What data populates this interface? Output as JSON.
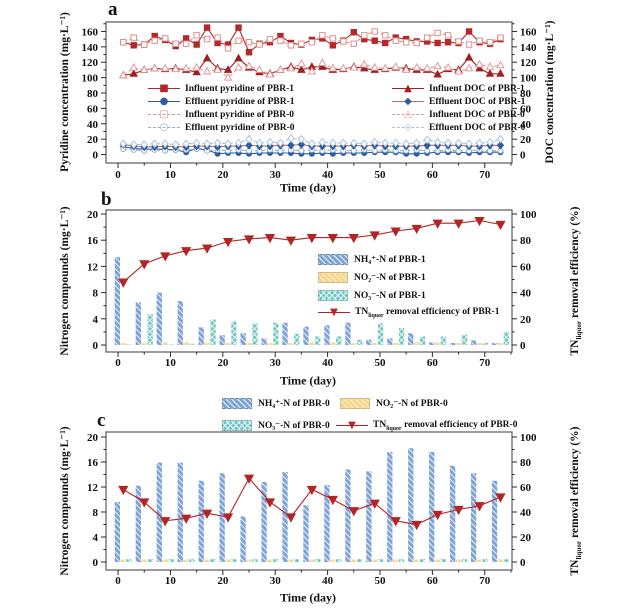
{
  "chart_data": [
    {
      "panel_label": "a",
      "type": "line",
      "xlabel": "Time (day)",
      "ylabel_left": "Pyridine concentration (mg·L⁻¹)",
      "ylabel_right": "DOC concentration (mg·L⁻¹)",
      "x_ticks": [
        0,
        10,
        20,
        30,
        40,
        50,
        60,
        70
      ],
      "y_ticks_left": [
        0,
        20,
        40,
        60,
        80,
        100,
        120,
        140,
        160
      ],
      "y_ticks_right": [
        0,
        20,
        40,
        60,
        80,
        100,
        120,
        140,
        160
      ],
      "xlim": [
        0,
        75
      ],
      "ylim_left": [
        0,
        170
      ],
      "ylim_right": [
        0,
        170
      ],
      "x": [
        1,
        3,
        5,
        7,
        9,
        11,
        13,
        15,
        17,
        19,
        21,
        23,
        25,
        27,
        29,
        31,
        33,
        35,
        37,
        39,
        41,
        43,
        45,
        47,
        49,
        51,
        53,
        55,
        57,
        59,
        61,
        63,
        65,
        67,
        69,
        71,
        73
      ],
      "series": [
        {
          "name": "Influent pyridine of PBR-1",
          "axis": "left",
          "marker": "square",
          "filled": true,
          "dashed": false,
          "color": "#b42828",
          "values": [
            146,
            142,
            143,
            154,
            149,
            141,
            151,
            143,
            165,
            145,
            143,
            165,
            133,
            144,
            146,
            154,
            145,
            143,
            149,
            151,
            142,
            148,
            159,
            150,
            148,
            145,
            152,
            150,
            147,
            147,
            145,
            146,
            145,
            160,
            146,
            144,
            150
          ]
        },
        {
          "name": "Effluent pyridine of PBR-1",
          "axis": "left",
          "marker": "circle",
          "filled": true,
          "dashed": false,
          "color": "#2f5e9e",
          "values": [
            10,
            8,
            7,
            7,
            7,
            6,
            3,
            8,
            6,
            1,
            2,
            2,
            1,
            2,
            2,
            2,
            2,
            1,
            1,
            2,
            1,
            2,
            2,
            2,
            3,
            3,
            3,
            1,
            1,
            2,
            3,
            3,
            3,
            2,
            3,
            3,
            3
          ]
        },
        {
          "name": "Influent pyridine of PBR-0",
          "axis": "left",
          "marker": "square",
          "filled": false,
          "dashed": true,
          "color": "#e09090",
          "values": [
            146,
            152,
            143,
            148,
            151,
            144,
            144,
            155,
            150,
            152,
            138,
            148,
            146,
            143,
            150,
            148,
            142,
            144,
            146,
            155,
            151,
            147,
            144,
            155,
            160,
            155,
            148,
            146,
            145,
            152,
            158,
            155,
            147,
            143,
            148,
            146,
            152
          ]
        },
        {
          "name": "Effluent pyridine of PBR-0",
          "axis": "left",
          "marker": "circle",
          "filled": false,
          "dashed": true,
          "color": "#93aecb",
          "values": [
            7,
            6,
            5,
            6,
            5,
            6,
            6,
            7,
            5,
            6,
            5,
            6,
            5,
            5,
            6,
            5,
            6,
            5,
            6,
            5,
            6,
            5,
            5,
            6,
            5,
            6,
            5,
            5,
            6,
            5,
            5,
            6,
            5,
            5,
            6,
            5,
            5
          ]
        },
        {
          "name": "Influent DOC of PBR-1",
          "axis": "right",
          "marker": "triangle-up",
          "filled": true,
          "dashed": false,
          "color": "#a02020",
          "values": [
            103,
            105,
            110,
            112,
            111,
            112,
            110,
            107,
            125,
            112,
            110,
            125,
            113,
            107,
            105,
            110,
            114,
            110,
            114,
            114,
            110,
            111,
            114,
            112,
            110,
            111,
            113,
            112,
            110,
            110,
            104,
            111,
            110,
            126,
            112,
            105,
            105
          ]
        },
        {
          "name": "Effluent DOC of PBR-1",
          "axis": "right",
          "marker": "diamond",
          "filled": true,
          "dashed": false,
          "color": "#2f5e9e",
          "line_color": "#c46a6a",
          "values": [
            13,
            11,
            10,
            10,
            11,
            10,
            10,
            11,
            11,
            10,
            11,
            11,
            12,
            11,
            11,
            12,
            12,
            13,
            11,
            11,
            11,
            11,
            12,
            11,
            12,
            11,
            11,
            11,
            11,
            12,
            12,
            12,
            12,
            11,
            11,
            12,
            12
          ]
        },
        {
          "name": "Influent DOC of PBR-0",
          "axis": "right",
          "marker": "triangle-up",
          "filled": false,
          "dashed": true,
          "color": "#e59a9a",
          "values": [
            103,
            113,
            110,
            112,
            112,
            111,
            112,
            113,
            108,
            110,
            100,
            113,
            115,
            110,
            104,
            110,
            112,
            118,
            108,
            119,
            112,
            112,
            113,
            117,
            113,
            112,
            114,
            110,
            113,
            112,
            115,
            113,
            108,
            112,
            117,
            114,
            116
          ]
        },
        {
          "name": "Effluent DOC of PBR-0",
          "axis": "right",
          "marker": "diamond",
          "filled": false,
          "dashed": true,
          "color": "#a9c6dc",
          "values": [
            14,
            13,
            13,
            14,
            14,
            13,
            14,
            15,
            14,
            15,
            14,
            15,
            20,
            15,
            16,
            15,
            21,
            20,
            14,
            16,
            15,
            15,
            15,
            14,
            16,
            15,
            15,
            14,
            15,
            19,
            16,
            15,
            15,
            14,
            15,
            16,
            20
          ]
        }
      ]
    },
    {
      "panel_label": "b",
      "type": "bar+line",
      "xlabel": "Time (day)",
      "ylabel_left": "Nitrogen compounds (mg·L⁻¹)",
      "ylabel_right_pre": "TN",
      "ylabel_right_sub": "liquor",
      "ylabel_right_post": " removal efficiency (%)",
      "x_ticks": [
        0,
        10,
        20,
        30,
        40,
        50,
        60,
        70
      ],
      "y_ticks_left": [
        0,
        4,
        8,
        12,
        16,
        20
      ],
      "y_ticks_right": [
        0,
        20,
        40,
        60,
        80,
        100
      ],
      "xlim": [
        0,
        75
      ],
      "ylim_left": [
        0,
        20
      ],
      "ylim_right": [
        0,
        100
      ],
      "days": [
        1,
        5,
        9,
        13,
        17,
        21,
        25,
        29,
        33,
        37,
        41,
        45,
        49,
        53,
        57,
        61,
        65,
        69,
        73
      ],
      "bars": [
        {
          "name": "NH₄⁺-N of PBR-1",
          "color": "#7ea3d7",
          "hatch": "diag",
          "values": [
            13.4,
            6.5,
            8.0,
            6.7,
            2.7,
            1.5,
            1.8,
            1.0,
            3.4,
            2.8,
            3.0,
            3.4,
            0.8,
            1.0,
            1.8,
            0.4,
            0.3,
            0.7,
            0.3
          ]
        },
        {
          "name": "NO₂⁻-N of PBR-1",
          "color": "#f5d78e",
          "hatch": "diag-light",
          "values": [
            0.3,
            0.3,
            0.4,
            0.4,
            0.3,
            0.3,
            0.3,
            0.3,
            0.3,
            0.4,
            0.4,
            0.3,
            0.3,
            0.3,
            0.4,
            0.4,
            0.3,
            0.3,
            0.3
          ]
        },
        {
          "name": "NO₃⁻-N of PBR-1",
          "color": "#6fc6c2",
          "hatch": "cross",
          "values": [
            0.1,
            4.7,
            0.1,
            0.2,
            3.9,
            3.6,
            3.3,
            3.4,
            1.7,
            1.3,
            1.3,
            0.8,
            3.3,
            2.6,
            1.3,
            1.3,
            1.6,
            0.3,
            2.0
          ]
        }
      ],
      "line": {
        "name_pre": "TN",
        "name_sub": "liquor",
        "name_post": " removal efficiency of PBR-1",
        "color": "#b32424",
        "marker": "triangle-down",
        "values": [
          48,
          62,
          68,
          72,
          74,
          79,
          81,
          82,
          80,
          82,
          82,
          82,
          84,
          87,
          89,
          93,
          93,
          95,
          92
        ]
      }
    },
    {
      "panel_label": "c",
      "type": "bar+line",
      "xlabel": "Time (day)",
      "ylabel_left": "Nitrogen compounds (mg·L⁻¹)",
      "ylabel_right_pre": "TN",
      "ylabel_right_sub": "liquor",
      "ylabel_right_post": " removal efficiency (%)",
      "x_ticks": [
        0,
        10,
        20,
        30,
        40,
        50,
        60,
        70
      ],
      "y_ticks_left": [
        0,
        4,
        8,
        12,
        16,
        20
      ],
      "y_ticks_right": [
        0,
        20,
        40,
        60,
        80,
        100
      ],
      "xlim": [
        0,
        75
      ],
      "ylim_left": [
        0,
        20
      ],
      "ylim_right": [
        0,
        100
      ],
      "days": [
        1,
        5,
        9,
        13,
        17,
        21,
        25,
        29,
        33,
        37,
        41,
        45,
        49,
        53,
        57,
        61,
        65,
        69,
        73
      ],
      "bars": [
        {
          "name": "NH₄⁺-N of PBR-0",
          "color": "#7ea3d7",
          "hatch": "diag",
          "values": [
            9.6,
            12.2,
            15.9,
            15.9,
            13.0,
            14.2,
            7.3,
            12.8,
            14.4,
            9.1,
            12.3,
            14.8,
            14.5,
            17.6,
            18.2,
            17.6,
            15.4,
            14.2,
            13.0
          ]
        },
        {
          "name": "NO₂⁻-N of PBR-0",
          "color": "#f5d78e",
          "hatch": "diag-light",
          "values": [
            0.4,
            0.4,
            0.4,
            0.4,
            0.4,
            0.4,
            0.4,
            0.4,
            0.4,
            0.4,
            0.4,
            0.4,
            0.4,
            0.4,
            0.4,
            0.4,
            0.4,
            0.4,
            0.4
          ]
        },
        {
          "name": "NO₃⁻-N of PBR-0",
          "color": "#6fc6c2",
          "hatch": "cross",
          "values": [
            0.5,
            0.5,
            0.5,
            0.5,
            0.5,
            0.5,
            0.5,
            0.5,
            0.5,
            0.5,
            0.5,
            0.5,
            0.5,
            0.5,
            0.5,
            0.5,
            0.5,
            0.5,
            0.5
          ]
        }
      ],
      "line": {
        "name_pre": "TN",
        "name_sub": "liquor",
        "name_post": " removal efficiency of PBR-0",
        "color": "#b32424",
        "marker": "triangle-down",
        "values": [
          58,
          48,
          33,
          35,
          39,
          36,
          67,
          48,
          36,
          58,
          50,
          41,
          47,
          33,
          30,
          38,
          42,
          45,
          52
        ]
      }
    }
  ]
}
